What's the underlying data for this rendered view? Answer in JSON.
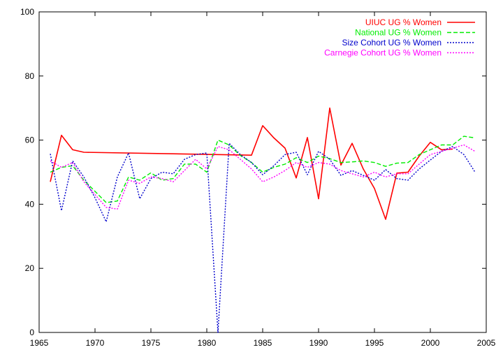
{
  "chart_data": {
    "type": "line",
    "title": "",
    "xlabel": "",
    "ylabel": "",
    "xlim": [
      1965,
      2005
    ],
    "ylim": [
      0,
      100
    ],
    "xticks": [
      1965,
      1970,
      1975,
      1980,
      1985,
      1990,
      1995,
      2000,
      2005
    ],
    "yticks": [
      0,
      20,
      40,
      60,
      80,
      100
    ],
    "grid": false,
    "legend": "top-right",
    "series": [
      {
        "name": "UIUC UG % Women",
        "color": "#ff0000",
        "dash": "solid",
        "x": [
          1966,
          1967,
          1968,
          1969,
          1984,
          1985,
          1986,
          1987,
          1988,
          1989,
          1990,
          1991,
          1992,
          1993,
          1994,
          1995,
          1996,
          1997,
          1998,
          1999,
          2000,
          2001,
          2002
        ],
        "y": [
          47,
          61.5,
          57,
          56.2,
          55.3,
          64.5,
          60.7,
          57.5,
          48.2,
          60.8,
          41.7,
          70,
          52.2,
          59,
          51,
          44.9,
          35.3,
          49.7,
          50,
          55,
          59.3,
          57,
          57.2
        ]
      },
      {
        "name": "National UG % Women",
        "color": "#00ee00",
        "dash": "dashed",
        "x": [
          1966,
          1967,
          1968,
          1969,
          1970,
          1971,
          1972,
          1973,
          1974,
          1975,
          1976,
          1977,
          1978,
          1979,
          1980,
          1981,
          1982,
          1983,
          1984,
          1985,
          1986,
          1987,
          1988,
          1989,
          1990,
          1991,
          1992,
          1993,
          1994,
          1995,
          1996,
          1997,
          1998,
          1999,
          2000,
          2001,
          2002,
          2003,
          2004
        ],
        "y": [
          50,
          51.5,
          52,
          47.5,
          44,
          40.5,
          41,
          48.5,
          47.5,
          49.8,
          47.5,
          48,
          52.5,
          52.5,
          50,
          60,
          58.5,
          55.2,
          53,
          50,
          51.5,
          52.5,
          54.5,
          53,
          55,
          54.2,
          53,
          53.2,
          53.5,
          53,
          51.8,
          52.8,
          53,
          55.5,
          57,
          58.5,
          58.5,
          61.2,
          60.7
        ]
      },
      {
        "name": "Size Cohort UG % Women",
        "color": "#0000cc",
        "dash": "dotted",
        "x": [
          1966,
          1967,
          1968,
          1969,
          1970,
          1971,
          1972,
          1973,
          1974,
          1975,
          1976,
          1977,
          1978,
          1979,
          1980,
          1981,
          1982,
          1983,
          1984,
          1985,
          1986,
          1987,
          1988,
          1989,
          1990,
          1991,
          1992,
          1993,
          1994,
          1995,
          1996,
          1997,
          1998,
          1999,
          2000,
          2001,
          2002,
          2003,
          2004
        ],
        "y": [
          55.7,
          38,
          53.5,
          48.5,
          42,
          34.5,
          48.5,
          56,
          41.7,
          48,
          50,
          49.5,
          54,
          55.5,
          56,
          0,
          59,
          55.5,
          53,
          49.2,
          52,
          55.5,
          56.2,
          49.2,
          56.5,
          54,
          49,
          50.5,
          49,
          47.5,
          50.8,
          48,
          47.5,
          51,
          53.8,
          56.5,
          58,
          55.5,
          50
        ]
      },
      {
        "name": "Carnegie Cohort UG % Women",
        "color": "#ff00ff",
        "dash": "dotted",
        "x": [
          1966,
          1967,
          1968,
          1969,
          1970,
          1971,
          1972,
          1973,
          1974,
          1975,
          1976,
          1977,
          1978,
          1979,
          1980,
          1981,
          1982,
          1983,
          1984,
          1985,
          1986,
          1987,
          1988,
          1989,
          1990,
          1991,
          1992,
          1993,
          1994,
          1995,
          1996,
          1997,
          1998,
          1999,
          2000,
          2001,
          2002,
          2003,
          2004
        ],
        "y": [
          53.5,
          51.5,
          53,
          47,
          43,
          39,
          38.5,
          47.5,
          46.5,
          48.5,
          48,
          47,
          50.5,
          54,
          51,
          58,
          57,
          54,
          51,
          47,
          48.5,
          50.5,
          53,
          51.5,
          53,
          52.5,
          50.5,
          49.5,
          48.5,
          50,
          48.5,
          49.5,
          49.5,
          52.5,
          55.5,
          56.5,
          57.5,
          58.5,
          56.5
        ]
      }
    ]
  }
}
